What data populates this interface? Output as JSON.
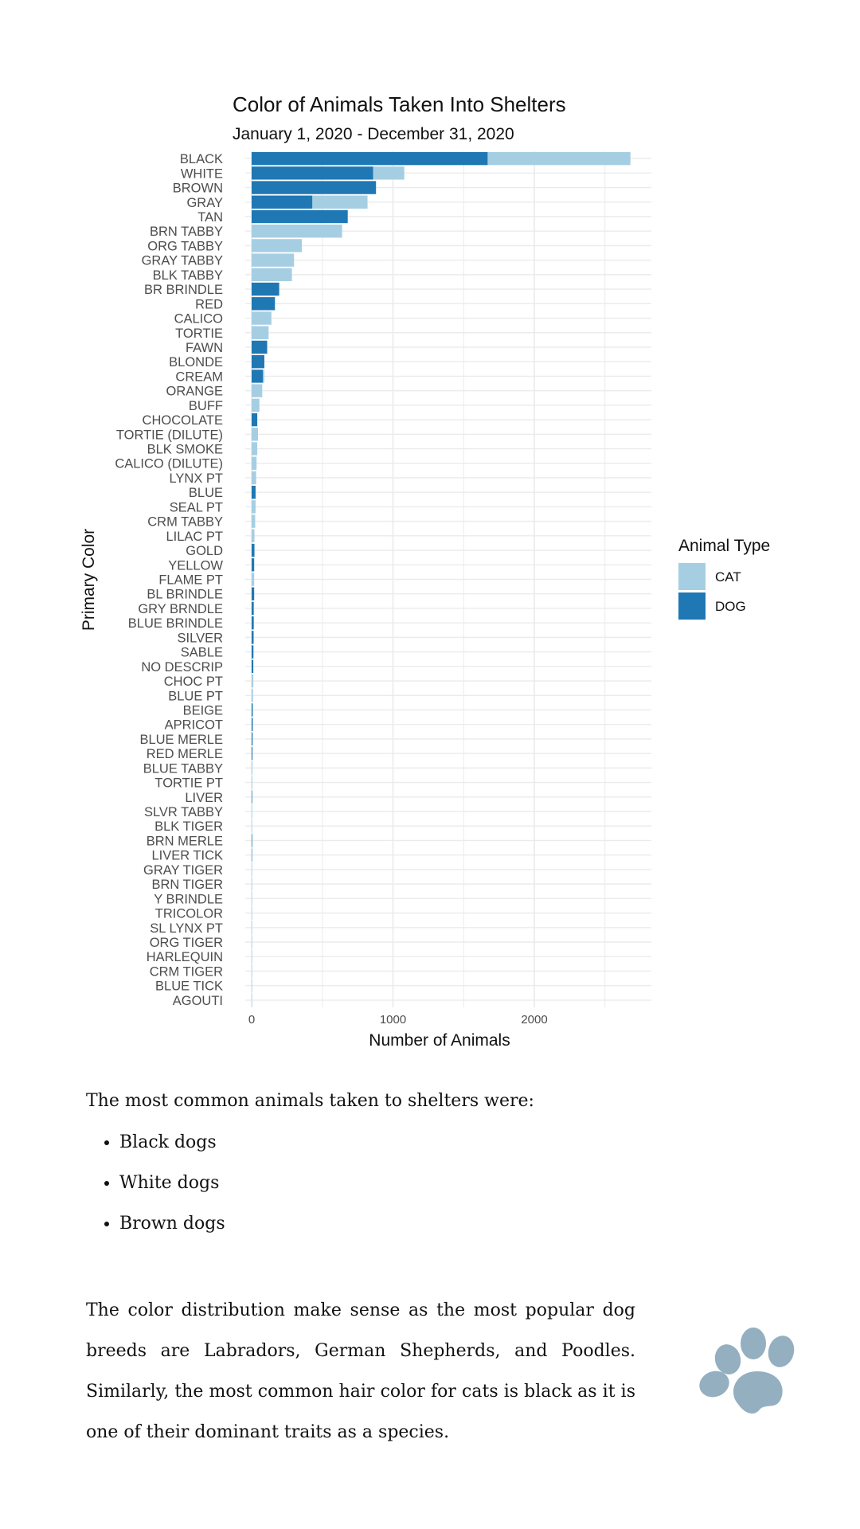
{
  "chart_data": {
    "type": "bar",
    "orientation": "horizontal",
    "stacked": true,
    "title": "Color of Animals Taken Into Shelters",
    "subtitle": "January 1, 2020 - December 31, 2020",
    "xlabel": "Number of Animals",
    "ylabel": "Primary Color",
    "xlim": [
      0,
      2800
    ],
    "xticks": [
      0,
      1000,
      2000
    ],
    "grid": true,
    "legend": {
      "title": "Animal Type",
      "placement": "right"
    },
    "categories": [
      "BLACK",
      "WHITE",
      "BROWN",
      "GRAY",
      "TAN",
      "BRN TABBY",
      "ORG TABBY",
      "GRAY TABBY",
      "BLK TABBY",
      "BR BRINDLE",
      "RED",
      "CALICO",
      "TORTIE",
      "FAWN",
      "BLONDE",
      "CREAM",
      "ORANGE",
      "BUFF",
      "CHOCOLATE",
      "TORTIE (DILUTE)",
      "BLK SMOKE",
      "CALICO (DILUTE)",
      "LYNX PT",
      "BLUE",
      "SEAL PT",
      "CRM TABBY",
      "LILAC PT",
      "GOLD",
      "YELLOW",
      "FLAME PT",
      "BL BRINDLE",
      "GRY BRNDLE",
      "BLUE BRINDLE",
      "SILVER",
      "SABLE",
      "NO DESCRIP",
      "CHOC PT",
      "BLUE PT",
      "BEIGE",
      "APRICOT",
      "BLUE MERLE",
      "RED MERLE",
      "BLUE TABBY",
      "TORTIE PT",
      "LIVER",
      "SLVR TABBY",
      "BLK TIGER",
      "BRN MERLE",
      "LIVER TICK",
      "GRAY TIGER",
      "BRN TIGER",
      "Y BRINDLE",
      "TRICOLOR",
      "SL LYNX PT",
      "ORG TIGER",
      "HARLEQUIN",
      "CRM TIGER",
      "BLUE TICK",
      "AGOUTI"
    ],
    "series": [
      {
        "name": "DOG",
        "color": "#1f78b4",
        "values": [
          1670,
          860,
          880,
          430,
          680,
          0,
          0,
          0,
          0,
          195,
          165,
          0,
          0,
          110,
          90,
          80,
          0,
          0,
          40,
          0,
          0,
          0,
          0,
          28,
          0,
          0,
          0,
          20,
          18,
          0,
          18,
          15,
          15,
          14,
          13,
          12,
          0,
          0,
          8,
          8,
          7,
          6,
          0,
          0,
          4,
          0,
          0,
          4,
          3,
          0,
          0,
          0,
          0,
          0,
          0,
          0,
          0,
          0,
          0
        ]
      },
      {
        "name": "CAT",
        "color": "#a6cee3",
        "values": [
          1010,
          220,
          0,
          390,
          0,
          640,
          355,
          300,
          285,
          0,
          0,
          140,
          120,
          0,
          0,
          10,
          75,
          55,
          0,
          45,
          40,
          35,
          32,
          0,
          28,
          25,
          20,
          0,
          0,
          18,
          0,
          0,
          0,
          0,
          0,
          0,
          12,
          10,
          0,
          0,
          0,
          0,
          6,
          5,
          0,
          4,
          3,
          0,
          0,
          2,
          2,
          2,
          2,
          1,
          1,
          1,
          1,
          1,
          1
        ]
      }
    ]
  },
  "text": {
    "intro": "The most common animals taken to shelters were:",
    "bullets": [
      "Black dogs",
      "White dogs",
      "Brown dogs"
    ],
    "paragraph": "The color distribution make sense as the most popular dog breeds are Labradors, German Shepherds, and Poodles. Similarly, the most common hair color for cats is black as it is one of their dominant traits as a species."
  },
  "decor": {
    "paw_icon": "paw-icon",
    "paw_color": "#93afc0"
  }
}
